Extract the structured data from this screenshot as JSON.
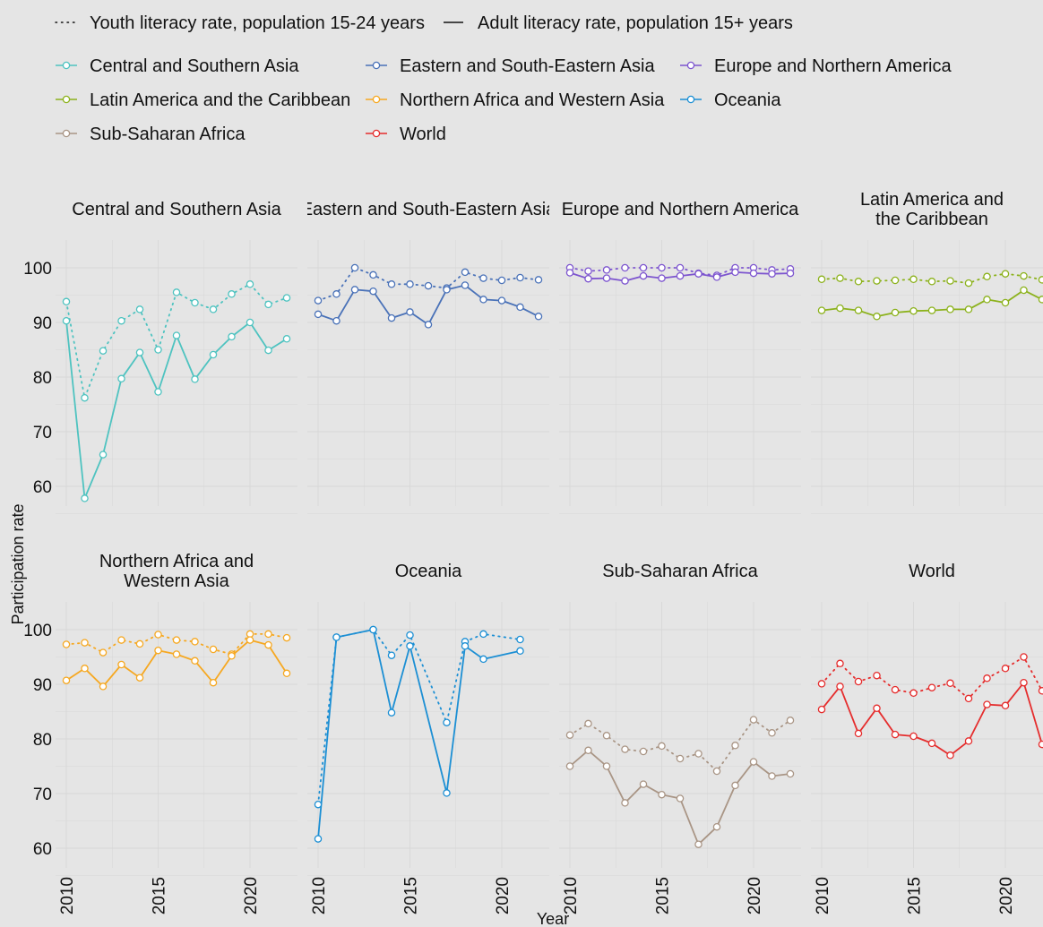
{
  "chart_data": {
    "type": "line",
    "xlabel": "Year",
    "ylabel": "Participation rate",
    "xlim": [
      2010,
      2022
    ],
    "ylim": [
      55,
      102
    ],
    "xticks": [
      2010,
      2015,
      2020
    ],
    "yticks": [
      60,
      70,
      80,
      90,
      100
    ],
    "grid": true,
    "legend_position": "top",
    "line_types": [
      {
        "name": "Youth literacy rate, population 15-24 years",
        "style": "dotted"
      },
      {
        "name": "Adult literacy rate, population 15+ years",
        "style": "solid"
      }
    ],
    "regions": [
      {
        "name": "Central and Southern Asia",
        "color": "#4ec3c0"
      },
      {
        "name": "Eastern and South-Eastern Asia",
        "color": "#4a72b8"
      },
      {
        "name": "Europe and Northern America",
        "color": "#7d55cf"
      },
      {
        "name": "Latin America and the Caribbean",
        "color": "#8cb21c"
      },
      {
        "name": "Northern Africa and Western Asia",
        "color": "#f6a821"
      },
      {
        "name": "Oceania",
        "color": "#1c8fd4"
      },
      {
        "name": "Sub-Saharan Africa",
        "color": "#a99585"
      },
      {
        "name": "World",
        "color": "#e52d2d"
      }
    ],
    "panels": [
      {
        "title": "Central and Southern Asia",
        "color": "#4ec3c0",
        "youth": [
          [
            2010,
            93.8
          ],
          [
            2011,
            76.2
          ],
          [
            2012,
            84.8
          ],
          [
            2013,
            90.3
          ],
          [
            2014,
            92.4
          ],
          [
            2015,
            85.0
          ],
          [
            2016,
            95.5
          ],
          [
            2017,
            93.6
          ],
          [
            2018,
            92.4
          ],
          [
            2019,
            95.2
          ],
          [
            2020,
            97.0
          ],
          [
            2021,
            93.3
          ],
          [
            2022,
            94.5
          ]
        ],
        "adult": [
          [
            2010,
            90.3
          ],
          [
            2011,
            57.8
          ],
          [
            2012,
            65.8
          ],
          [
            2013,
            79.7
          ],
          [
            2014,
            84.5
          ],
          [
            2015,
            77.3
          ],
          [
            2016,
            87.6
          ],
          [
            2017,
            79.6
          ],
          [
            2018,
            84.1
          ],
          [
            2019,
            87.4
          ],
          [
            2020,
            90.0
          ],
          [
            2021,
            84.9
          ],
          [
            2022,
            87.0
          ]
        ]
      },
      {
        "title": "Eastern and South-Eastern Asia",
        "color": "#4a72b8",
        "youth": [
          [
            2010,
            94.0
          ],
          [
            2011,
            95.2
          ],
          [
            2012,
            100.0
          ],
          [
            2013,
            98.7
          ],
          [
            2014,
            97.0
          ],
          [
            2015,
            97.0
          ],
          [
            2016,
            96.7
          ],
          [
            2017,
            96.3
          ],
          [
            2018,
            99.2
          ],
          [
            2019,
            98.1
          ],
          [
            2020,
            97.7
          ],
          [
            2021,
            98.2
          ],
          [
            2022,
            97.8
          ]
        ],
        "adult": [
          [
            2010,
            91.5
          ],
          [
            2011,
            90.3
          ],
          [
            2012,
            96.0
          ],
          [
            2013,
            95.7
          ],
          [
            2014,
            90.8
          ],
          [
            2015,
            91.9
          ],
          [
            2016,
            89.6
          ],
          [
            2017,
            96.0
          ],
          [
            2018,
            96.8
          ],
          [
            2019,
            94.2
          ],
          [
            2020,
            94.0
          ],
          [
            2021,
            92.8
          ],
          [
            2022,
            91.1
          ]
        ]
      },
      {
        "title": "Europe and Northern America",
        "color": "#7d55cf",
        "youth": [
          [
            2010,
            100.0
          ],
          [
            2011,
            99.4
          ],
          [
            2012,
            99.6
          ],
          [
            2013,
            100.0
          ],
          [
            2014,
            100.0
          ],
          [
            2015,
            100.0
          ],
          [
            2016,
            100.0
          ],
          [
            2017,
            99.0
          ],
          [
            2018,
            98.6
          ],
          [
            2019,
            100.0
          ],
          [
            2020,
            100.0
          ],
          [
            2021,
            99.6
          ],
          [
            2022,
            99.8
          ]
        ],
        "adult": [
          [
            2010,
            99.1
          ],
          [
            2011,
            98.0
          ],
          [
            2012,
            98.1
          ],
          [
            2013,
            97.6
          ],
          [
            2014,
            98.5
          ],
          [
            2015,
            98.1
          ],
          [
            2016,
            98.5
          ],
          [
            2017,
            98.9
          ],
          [
            2018,
            98.3
          ],
          [
            2019,
            99.2
          ],
          [
            2020,
            99.0
          ],
          [
            2021,
            98.9
          ],
          [
            2022,
            99.0
          ]
        ]
      },
      {
        "title": "Latin America and the Caribbean",
        "title_lines": [
          "Latin America and",
          "the Caribbean"
        ],
        "color": "#8cb21c",
        "youth": [
          [
            2010,
            97.9
          ],
          [
            2011,
            98.1
          ],
          [
            2012,
            97.5
          ],
          [
            2013,
            97.6
          ],
          [
            2014,
            97.7
          ],
          [
            2015,
            97.9
          ],
          [
            2016,
            97.5
          ],
          [
            2017,
            97.6
          ],
          [
            2018,
            97.2
          ],
          [
            2019,
            98.4
          ],
          [
            2020,
            98.9
          ],
          [
            2021,
            98.5
          ],
          [
            2022,
            97.8
          ]
        ],
        "adult": [
          [
            2010,
            92.2
          ],
          [
            2011,
            92.6
          ],
          [
            2012,
            92.2
          ],
          [
            2013,
            91.1
          ],
          [
            2014,
            91.8
          ],
          [
            2015,
            92.1
          ],
          [
            2016,
            92.2
          ],
          [
            2017,
            92.4
          ],
          [
            2018,
            92.4
          ],
          [
            2019,
            94.2
          ],
          [
            2020,
            93.6
          ],
          [
            2021,
            95.9
          ],
          [
            2022,
            94.2
          ]
        ]
      },
      {
        "title": "Northern Africa and Western Asia",
        "title_lines": [
          "Northern Africa and",
          "Western Asia"
        ],
        "color": "#f6a821",
        "youth": [
          [
            2010,
            97.3
          ],
          [
            2011,
            97.6
          ],
          [
            2012,
            95.8
          ],
          [
            2013,
            98.1
          ],
          [
            2014,
            97.4
          ],
          [
            2015,
            99.1
          ],
          [
            2016,
            98.1
          ],
          [
            2017,
            97.8
          ],
          [
            2018,
            96.4
          ],
          [
            2019,
            95.5
          ],
          [
            2020,
            99.2
          ],
          [
            2021,
            99.2
          ],
          [
            2022,
            98.5
          ]
        ],
        "adult": [
          [
            2010,
            90.7
          ],
          [
            2011,
            92.9
          ],
          [
            2012,
            89.6
          ],
          [
            2013,
            93.6
          ],
          [
            2014,
            91.2
          ],
          [
            2015,
            96.2
          ],
          [
            2016,
            95.5
          ],
          [
            2017,
            94.3
          ],
          [
            2018,
            90.3
          ],
          [
            2019,
            95.2
          ],
          [
            2020,
            98.1
          ],
          [
            2021,
            97.2
          ],
          [
            2022,
            92.0
          ]
        ]
      },
      {
        "title": "Oceania",
        "color": "#1c8fd4",
        "youth": [
          [
            2010,
            68.0
          ],
          [
            2011,
            98.6
          ],
          [
            2013,
            100.0
          ],
          [
            2014,
            95.3
          ],
          [
            2015,
            99.0
          ],
          [
            2017,
            83.0
          ],
          [
            2018,
            97.8
          ],
          [
            2019,
            99.2
          ],
          [
            2021,
            98.2
          ]
        ],
        "adult": [
          [
            2010,
            61.7
          ],
          [
            2011,
            98.6
          ],
          [
            2013,
            100.0
          ],
          [
            2014,
            84.8
          ],
          [
            2015,
            97.0
          ],
          [
            2017,
            70.1
          ],
          [
            2018,
            97.0
          ],
          [
            2019,
            94.6
          ],
          [
            2021,
            96.1
          ]
        ]
      },
      {
        "title": "Sub-Saharan Africa",
        "color": "#a99585",
        "youth": [
          [
            2010,
            80.7
          ],
          [
            2011,
            82.8
          ],
          [
            2012,
            80.6
          ],
          [
            2013,
            78.1
          ],
          [
            2014,
            77.7
          ],
          [
            2015,
            78.7
          ],
          [
            2016,
            76.4
          ],
          [
            2017,
            77.3
          ],
          [
            2018,
            74.1
          ],
          [
            2019,
            78.8
          ],
          [
            2020,
            83.5
          ],
          [
            2021,
            81.1
          ],
          [
            2022,
            83.4
          ]
        ],
        "adult": [
          [
            2010,
            75.0
          ],
          [
            2011,
            77.9
          ],
          [
            2012,
            75.0
          ],
          [
            2013,
            68.3
          ],
          [
            2014,
            71.7
          ],
          [
            2015,
            69.8
          ],
          [
            2016,
            69.1
          ],
          [
            2017,
            60.7
          ],
          [
            2018,
            63.9
          ],
          [
            2019,
            71.5
          ],
          [
            2020,
            75.8
          ],
          [
            2021,
            73.2
          ],
          [
            2022,
            73.6
          ]
        ]
      },
      {
        "title": "World",
        "color": "#e52d2d",
        "youth": [
          [
            2010,
            90.1
          ],
          [
            2011,
            93.8
          ],
          [
            2012,
            90.5
          ],
          [
            2013,
            91.6
          ],
          [
            2014,
            89.0
          ],
          [
            2015,
            88.4
          ],
          [
            2016,
            89.4
          ],
          [
            2017,
            90.2
          ],
          [
            2018,
            87.4
          ],
          [
            2019,
            91.1
          ],
          [
            2020,
            92.9
          ],
          [
            2021,
            95.0
          ],
          [
            2022,
            88.8
          ]
        ],
        "adult": [
          [
            2010,
            85.4
          ],
          [
            2011,
            89.6
          ],
          [
            2012,
            81.0
          ],
          [
            2013,
            85.6
          ],
          [
            2014,
            80.8
          ],
          [
            2015,
            80.5
          ],
          [
            2016,
            79.2
          ],
          [
            2017,
            77.0
          ],
          [
            2018,
            79.6
          ],
          [
            2019,
            86.3
          ],
          [
            2020,
            86.1
          ],
          [
            2021,
            90.3
          ],
          [
            2022,
            79.0
          ]
        ]
      }
    ]
  }
}
